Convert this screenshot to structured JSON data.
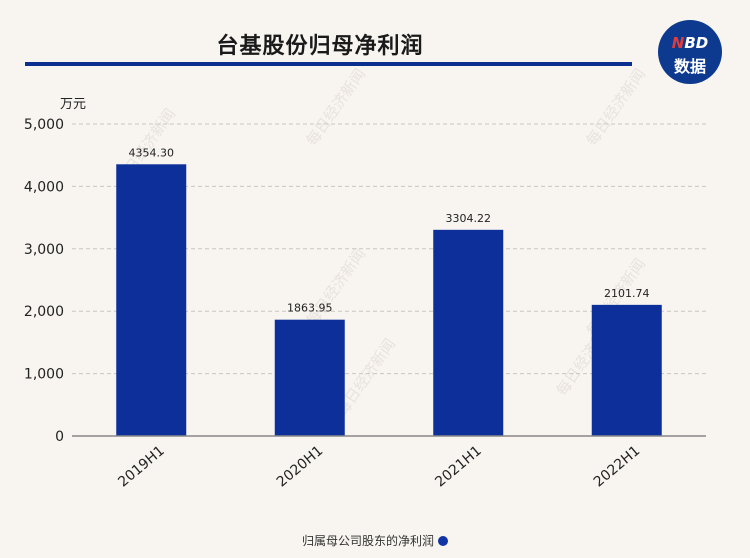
{
  "title": "台基股份归母净利润",
  "logo": {
    "top_n": "N",
    "top_rest": "BD",
    "bottom": "数据"
  },
  "watermark": "每日经济新闻",
  "colors": {
    "bar": "#0d2f9a",
    "accent": "#0a2f8e",
    "background": "#f8f5f1"
  },
  "chart_data": {
    "type": "bar",
    "categories": [
      "2019H1",
      "2020H1",
      "2021H1",
      "2022H1"
    ],
    "series": [
      {
        "name": "归属母公司股东的净利润",
        "values": [
          4354.3,
          1863.95,
          3304.22,
          2101.74
        ]
      }
    ],
    "value_labels": [
      "4354.30",
      "1863.95",
      "3304.22",
      "2101.74"
    ],
    "ylabel": "万元",
    "ylim": [
      0,
      5000
    ],
    "yticks": [
      0,
      1000,
      2000,
      3000,
      4000,
      5000
    ],
    "ytick_labels": [
      "0",
      "1,000",
      "2,000",
      "3,000",
      "4,000",
      "5,000"
    ],
    "grid": true,
    "legend_position": "bottom"
  }
}
